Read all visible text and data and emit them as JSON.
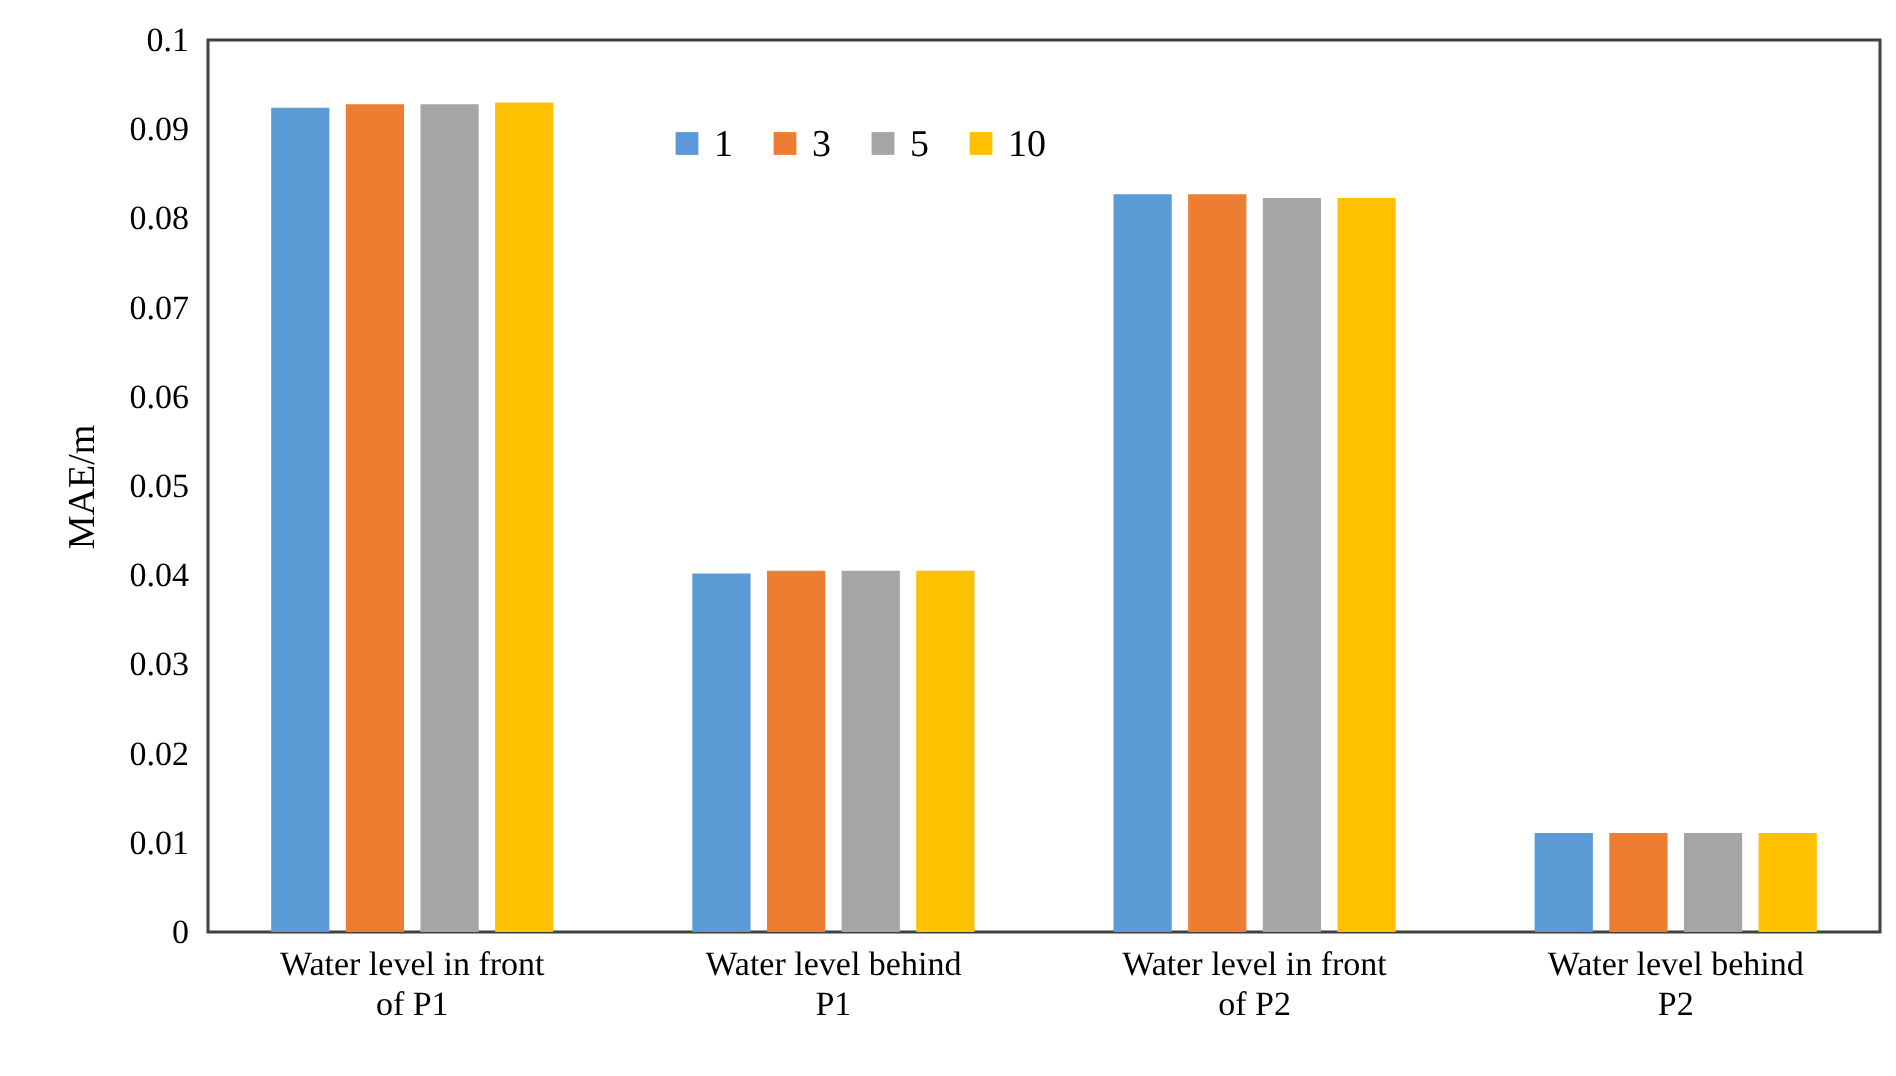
{
  "chart_data": {
    "type": "bar",
    "ylabel": "MAE/m",
    "categories": [
      "Water level in front of P1",
      "Water level behind P1",
      "Water level in front of P2",
      "Water level behind P2"
    ],
    "series": [
      {
        "name": "1",
        "color": "#5b9bd5",
        "values": [
          0.0924,
          0.0402,
          0.0827,
          0.0111
        ]
      },
      {
        "name": "3",
        "color": "#ed7d31",
        "values": [
          0.0928,
          0.0405,
          0.0827,
          0.0111
        ]
      },
      {
        "name": "5",
        "color": "#a5a5a5",
        "values": [
          0.0928,
          0.0405,
          0.0823,
          0.0111
        ]
      },
      {
        "name": "10",
        "color": "#ffc000",
        "values": [
          0.093,
          0.0405,
          0.0823,
          0.0111
        ]
      }
    ],
    "ylim": [
      0,
      0.1
    ],
    "yticks": [
      0,
      0.01,
      0.02,
      0.03,
      0.04,
      0.05,
      0.06,
      0.07,
      0.08,
      0.09,
      0.1
    ],
    "grid": false,
    "legend": "top"
  }
}
